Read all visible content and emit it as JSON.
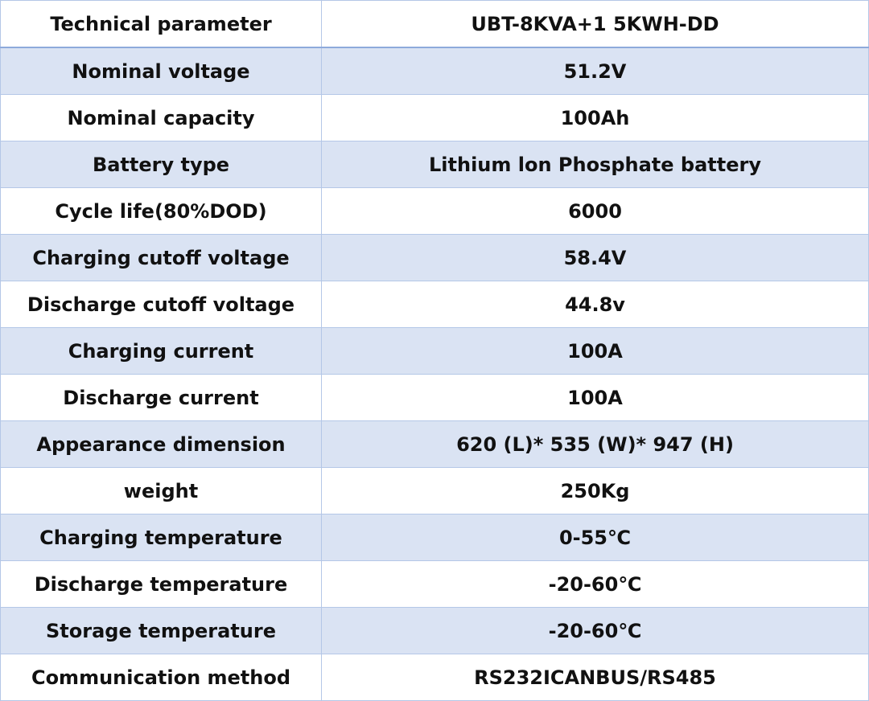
{
  "table": {
    "header": [
      "Technical parameter",
      "UBT-8KVA+1 5KWH-DD"
    ],
    "rows": [
      [
        "Nominal voltage",
        "51.2V"
      ],
      [
        "Nominal capacity",
        "100Ah"
      ],
      [
        "Battery type",
        "Lithium lon Phosphate battery"
      ],
      [
        "Cycle life(80%DOD)",
        "6000"
      ],
      [
        "Charging cutoff voltage",
        "58.4V"
      ],
      [
        "Discharge cutoff voltage",
        "44.8v"
      ],
      [
        "Charging current",
        "100A"
      ],
      [
        "Discharge current",
        "100A"
      ],
      [
        "Appearance dimension",
        "620 (L)* 535 (W)* 947 (H)"
      ],
      [
        "weight",
        "250Kg"
      ],
      [
        "Charging temperature",
        "0-55℃"
      ],
      [
        "Discharge temperature",
        "-20-60℃"
      ],
      [
        "Storage temperature",
        "-20-60℃"
      ],
      [
        "Communication method",
        "RS232ICANBUS/RS485"
      ]
    ]
  }
}
